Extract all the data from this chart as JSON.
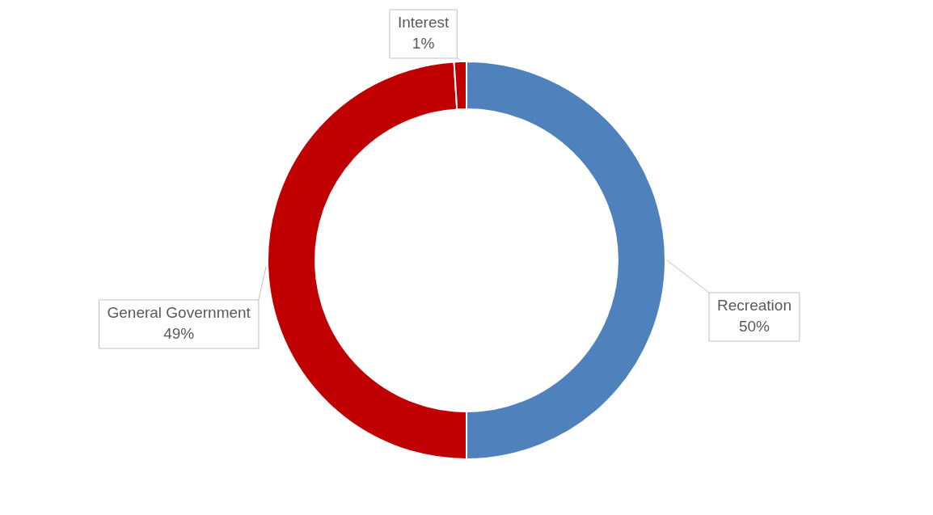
{
  "chart_data": {
    "type": "donut",
    "categories": [
      "Recreation",
      "General Government",
      "Interest"
    ],
    "values": [
      50,
      49,
      1
    ],
    "value_labels": [
      "50%",
      "49%",
      "1%"
    ],
    "colors": [
      "#4f81bd",
      "#c00000",
      "#c00000"
    ],
    "legend": false
  }
}
